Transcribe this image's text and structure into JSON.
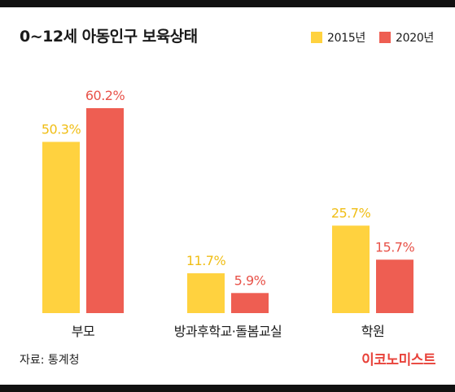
{
  "title": "0~12세 아동인구 보육상태",
  "source": "자료: 통계청",
  "brand": "이코노미스트",
  "colors": {
    "series_2015": "#FFD23F",
    "series_2020": "#EE5E52",
    "label_2015": "#F0BE16",
    "label_2020": "#E8534A",
    "brand": "#E8423A"
  },
  "chart_data": {
    "type": "bar",
    "title": "0~12세 아동인구 보육상태",
    "categories": [
      "부모",
      "방과후학교·돌봄교실",
      "학원"
    ],
    "series": [
      {
        "name": "2015년",
        "values": [
          50.3,
          11.7,
          25.7
        ],
        "labels": [
          "50.3%",
          "11.7%",
          "25.7%"
        ]
      },
      {
        "name": "2020년",
        "values": [
          60.2,
          5.9,
          15.7
        ],
        "labels": [
          "60.2%",
          "5.9%",
          "15.7%"
        ]
      }
    ],
    "ylim": [
      0,
      60.2
    ],
    "grid": false,
    "legend": "top-right"
  }
}
